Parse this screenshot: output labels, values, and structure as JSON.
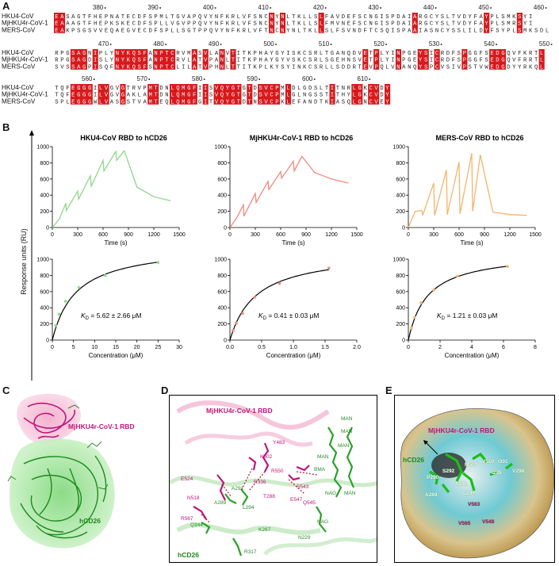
{
  "panel_letters": {
    "a": "A",
    "b": "B",
    "c": "C",
    "d": "D",
    "e": "E"
  },
  "alignment": {
    "seq_names": [
      "HKU4-CoV",
      "MjHKU4r-CoV-1",
      "MERS-CoV"
    ],
    "blocks": [
      {
        "positions": [
          {
            "label": "380",
            "col": 8
          },
          {
            "label": "390",
            "col": 18
          },
          {
            "label": "400",
            "col": 28
          },
          {
            "label": "410",
            "col": 38
          },
          {
            "label": "420",
            "col": 48
          },
          {
            "label": "430",
            "col": 58
          },
          {
            "label": "440",
            "col": 68
          },
          {
            "label": "450",
            "col": 78
          },
          {
            "label": "460",
            "col": 88
          }
        ],
        "rows": [
          "EASAGTFHEPNATECDFSPMLTGVAPQVYNFKRLVFSNCNYNLTKLLSLFAVDEFSCNGISPDAIARGCYSLTVDYFAYPLSMKSYI",
          "EAAAGTFHEPKSKECDFSPLLVGVPPQVYNFKRLVFSNCNYNLTKLLSLFMVNEFSCNGISPDAIARGCYSLTVDYFAYPLSMRSYI",
          "EAKPSGSVVEQAEGVECDFSPLLSGTPPQVYNFKRLVFTNCNYNLTKLLSLFSVNDFTCSQISPAAIASNCYSSLILDYFSYPLSMKSDL"
        ]
      },
      {
        "positions": [
          {
            "label": "470",
            "col": 9
          },
          {
            "label": "480",
            "col": 19
          },
          {
            "label": "490",
            "col": 29
          },
          {
            "label": "500",
            "col": 39
          },
          {
            "label": "510",
            "col": 49
          },
          {
            "label": "520",
            "col": 59
          },
          {
            "label": "530",
            "col": 69
          },
          {
            "label": "540",
            "col": 79
          },
          {
            "label": "550",
            "col": 89
          }
        ],
        "rows": [
          "RPGSAGNIPLYNYKQSFANPTCRVMASVLANVTITKPHAYGYISKCSRLTGANQDVETPLYINPGEYSICRDFSPGGFSEDGQVFKRTL",
          "RPGSAGDISLYNYKQSFANPTCRVLATVPANLTITKPHAYGYVSKCSRLSGEHNSVETPLYINPGEYSICRDFSPGGFSEDGQVFRRTL",
          "SVSSAGPISQFNYKQSFSNPTCLILATVPHNLTTITKPLKYSYINKCSRLLSDDRTEVPQLVNANQYSPCVSIVPSTVWEDGDYYRKQL"
        ]
      },
      {
        "positions": [
          {
            "label": "560",
            "col": 6
          },
          {
            "label": "570",
            "col": 16
          },
          {
            "label": "580",
            "col": 26
          },
          {
            "label": "590",
            "col": 36
          },
          {
            "label": "600",
            "col": 46
          },
          {
            "label": "610",
            "col": 56
          }
        ],
        "rows": [
          "TQFEGGGILVGVGTRVPMTDNLQMGFIISVQYGTGTDSVCPMLDLGDSLTITNRLGKCVDY",
          "TQFEGGGILVGVGAKLAMTDNLQMGFIISVQYGTGTDSVCPMLGLNGSSTITHYLGKCVDY",
          "SPLEGGGWLVASGSTVAMTEQLQMGFGITVQYGTDTNSVCPKLEFANDTKIASQLGNCVEY"
        ]
      }
    ]
  },
  "spr": {
    "ylabel": "Response units (RU)",
    "kd_symbol": "K",
    "kd_sub": "D",
    "charts": [
      {
        "title": "HKU4-CoV RBD to hCD26",
        "kd_text": " = 5.62 ± 2.66 μM",
        "color": "#8fd88a"
      },
      {
        "title": "MjHKU4r-CoV-1 RBD to hCD26",
        "kd_text": " = 0.41 ± 0.03 μM",
        "color": "#f08a7e"
      },
      {
        "title": "MERS-CoV RBD to hCD26",
        "kd_text": " = 1.21 ± 0.03 μM",
        "color": "#f5b36b"
      }
    ]
  },
  "chart_data": [
    {
      "type": "line",
      "title": "HKU4-CoV RBD to hCD26",
      "xlabel": "Time (s)",
      "ylabel": "Response units (RU)",
      "xlim": [
        0,
        1500
      ],
      "ylim": [
        0,
        1000
      ],
      "xticks": [
        0,
        300,
        600,
        900,
        1200,
        1500
      ],
      "yticks": [
        0,
        200,
        400,
        600,
        800,
        1000
      ],
      "series": [
        {
          "x": [
            0,
            80,
            160,
            165,
            300,
            310,
            450,
            460,
            600,
            610,
            750,
            760,
            850,
            1000,
            1200,
            1400
          ],
          "y": [
            0,
            100,
            300,
            210,
            450,
            350,
            640,
            510,
            830,
            700,
            940,
            830,
            950,
            500,
            380,
            330
          ]
        }
      ]
    },
    {
      "type": "line",
      "title": "MjHKU4r-CoV-1 RBD to hCD26",
      "xlabel": "Time (s)",
      "ylabel": "Response units (RU)",
      "xlim": [
        0,
        1500
      ],
      "ylim": [
        0,
        1000
      ],
      "xticks": [
        0,
        300,
        600,
        900,
        1200,
        1500
      ],
      "yticks": [
        0,
        200,
        400,
        600,
        800,
        1000
      ],
      "series": [
        {
          "x": [
            0,
            80,
            160,
            165,
            300,
            310,
            450,
            460,
            600,
            610,
            750,
            760,
            850,
            1000,
            1200,
            1400
          ],
          "y": [
            0,
            120,
            280,
            140,
            420,
            310,
            570,
            470,
            690,
            610,
            820,
            700,
            880,
            680,
            600,
            550
          ]
        }
      ]
    },
    {
      "type": "line",
      "title": "MERS-CoV RBD to hCD26",
      "xlabel": "Time (s)",
      "ylabel": "Response units (RU)",
      "xlim": [
        0,
        1500
      ],
      "ylim": [
        0,
        1000
      ],
      "xticks": [
        0,
        300,
        600,
        900,
        1200,
        1500
      ],
      "yticks": [
        0,
        200,
        400,
        600,
        800,
        1000
      ],
      "series": [
        {
          "x": [
            0,
            80,
            160,
            170,
            300,
            310,
            450,
            460,
            600,
            610,
            750,
            760,
            850,
            1000,
            1200,
            1400
          ],
          "y": [
            0,
            200,
            210,
            150,
            550,
            150,
            710,
            160,
            810,
            170,
            920,
            200,
            900,
            190,
            160,
            150
          ]
        }
      ]
    },
    {
      "type": "scatter",
      "xlabel": "Concentration (μM)",
      "xlim": [
        0,
        30
      ],
      "ylim": [
        0,
        1000
      ],
      "xticks": [
        0,
        5,
        10,
        15,
        20,
        25,
        30
      ],
      "yticks": [
        0,
        200,
        400,
        600,
        800,
        1000
      ],
      "points": {
        "x": [
          0.8,
          1.6,
          3.1,
          6.3,
          12.5,
          25
        ],
        "y": [
          180,
          320,
          480,
          650,
          800,
          960
        ]
      },
      "fit": {
        "kd": 5.62,
        "bmax": 1180
      }
    },
    {
      "type": "scatter",
      "xlabel": "Concentration (μM)",
      "xlim": [
        0,
        2.0
      ],
      "ylim": [
        0,
        1000
      ],
      "xticks": [
        0.0,
        0.5,
        1.0,
        1.5,
        2.0
      ],
      "yticks": [
        0,
        200,
        400,
        600,
        800,
        1000
      ],
      "points": {
        "x": [
          0.05,
          0.1,
          0.2,
          0.39,
          0.78,
          1.56
        ],
        "y": [
          120,
          210,
          330,
          530,
          700,
          890
        ]
      },
      "fit": {
        "kd": 0.41,
        "bmax": 1100
      }
    },
    {
      "type": "scatter",
      "xlabel": "Concentration (μM)",
      "xlim": [
        0,
        8
      ],
      "ylim": [
        0,
        1000
      ],
      "xticks": [
        0,
        2,
        4,
        6,
        8
      ],
      "yticks": [
        0,
        200,
        400,
        600,
        800,
        1000
      ],
      "points": {
        "x": [
          0.2,
          0.4,
          0.8,
          1.6,
          3.1,
          6.25
        ],
        "y": [
          150,
          280,
          460,
          620,
          790,
          910
        ]
      },
      "fit": {
        "kd": 1.21,
        "bmax": 1090
      }
    }
  ],
  "structure_c": {
    "rbd_label": "MjHKU4r-CoV-1 RBD",
    "receptor_label": "hCD26"
  },
  "structure_d": {
    "rbd_label": "MjHKU4r-CoV-1 RBD",
    "receptor_label": "hCD26",
    "residues": [
      {
        "t": "Y483",
        "c": "#c0157a"
      },
      {
        "t": "K502",
        "c": "#c0157a"
      },
      {
        "t": "R550",
        "c": "#c0157a"
      },
      {
        "t": "E524",
        "c": "#c0157a"
      },
      {
        "t": "R336",
        "c": "#c0157a"
      },
      {
        "t": "T288",
        "c": "#c0157a"
      },
      {
        "t": "S543",
        "c": "#c0157a"
      },
      {
        "t": "E547",
        "c": "#c0157a"
      },
      {
        "t": "Q545",
        "c": "#c0157a"
      },
      {
        "t": "N518",
        "c": "#c0157a"
      },
      {
        "t": "A291",
        "c": "#2a8a2a"
      },
      {
        "t": "A289",
        "c": "#2a8a2a"
      },
      {
        "t": "L294",
        "c": "#2a8a2a"
      },
      {
        "t": "R567",
        "c": "#c0157a"
      },
      {
        "t": "Q344",
        "c": "#2a8a2a"
      },
      {
        "t": "K267",
        "c": "#2a8a2a"
      },
      {
        "t": "R317",
        "c": "#2a8a2a"
      },
      {
        "t": "N229",
        "c": "#2a8a2a"
      },
      {
        "t": "MAN",
        "c": "#2a8a2a"
      },
      {
        "t": "MAN",
        "c": "#2a8a2a"
      },
      {
        "t": "MAN",
        "c": "#2a8a2a"
      },
      {
        "t": "MAN",
        "c": "#2a8a2a"
      },
      {
        "t": "BMA",
        "c": "#2a8a2a"
      },
      {
        "t": "NAG",
        "c": "#2a8a2a"
      },
      {
        "t": "NAG",
        "c": "#2a8a2a"
      },
      {
        "t": "MAN",
        "c": "#2a8a2a"
      }
    ]
  },
  "structure_e": {
    "rbd_label": "MjHKU4r-CoV-1 RBD",
    "receptor_label": "hCD26",
    "residues": [
      {
        "t": "S292",
        "c": "#ffffff"
      },
      {
        "t": "V510",
        "c": "#ffffff"
      },
      {
        "t": "I301",
        "c": "#ffffff"
      },
      {
        "t": "M509",
        "c": "#ffffff"
      },
      {
        "t": "A291",
        "c": "#ffffff"
      },
      {
        "t": "I295",
        "c": "#ffffff"
      },
      {
        "t": "P290",
        "c": "#ffffff"
      },
      {
        "t": "L294",
        "c": "#ffffff"
      },
      {
        "t": "A289",
        "c": "#ffffff"
      },
      {
        "t": "V563",
        "c": "#c0157a"
      },
      {
        "t": "V548",
        "c": "#c0157a"
      },
      {
        "t": "V565",
        "c": "#c0157a"
      },
      {
        "t": "V298",
        "c": "#ffffff"
      }
    ]
  }
}
